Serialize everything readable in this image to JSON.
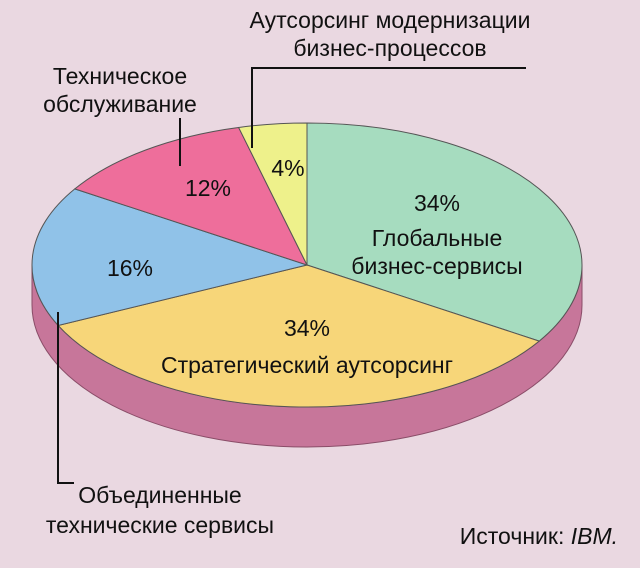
{
  "chart_data": {
    "type": "pie3d",
    "categories": [
      [
        "Глобальные",
        "бизнес-сервисы"
      ],
      [
        "Стратегический аутсорсинг"
      ],
      [
        "Объединенные",
        "технические сервисы"
      ],
      [
        "Техническое",
        "обслуживание"
      ],
      [
        "Аутсорсинг модернизации",
        "бизнес-процессов"
      ]
    ],
    "values": [
      34,
      34,
      16,
      12,
      4
    ],
    "value_labels": [
      "34%",
      "34%",
      "16%",
      "12%",
      "4%"
    ],
    "colors": [
      "#a6dcbf",
      "#f7d679",
      "#90c2e8",
      "#ee6e9b",
      "#eef18b"
    ],
    "side_color": "#c7769a",
    "source_label": "Источник:",
    "source": "IBM."
  }
}
